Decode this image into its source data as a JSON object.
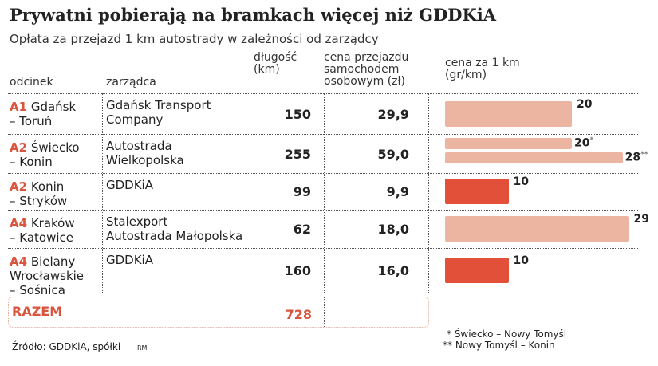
{
  "title": "Prywatni pobierają na bramkach więcej niż GDDKiA",
  "subtitle": "Opłata za przejazd 1 km autostrady w zależności od zarządcy",
  "headers": {
    "segment": "odcinek",
    "manager": "zarządca",
    "length": "długość (km)",
    "price": "cena przejazdu samochodem osobowym (zł)",
    "per_km": "cena za 1 km (gr/km)"
  },
  "colors": {
    "private": "#ebb5a2",
    "gddkia": "#e2503a",
    "accent": "#d9553e"
  },
  "chart_data": {
    "type": "table",
    "columns": [
      "odcinek",
      "zarządca",
      "długość (km)",
      "cena przejazdu samochodem osobowym (zł)",
      "cena za 1 km (gr/km)"
    ],
    "rows": [
      {
        "code": "A1",
        "segment": "Gdańsk – Toruń",
        "segment_l1": "Gdańsk",
        "segment_l2": "– Toruń",
        "manager_l1": "Gdańsk Transport",
        "manager_l2": "Company",
        "length": "150",
        "price": "29,9",
        "bars": [
          {
            "value": 20,
            "label": "20",
            "mark": ""
          }
        ],
        "type": "private"
      },
      {
        "code": "A2",
        "segment": "Świecko – Konin",
        "segment_l1": "Świecko",
        "segment_l2": "– Konin",
        "manager_l1": "Autostrada",
        "manager_l2": "Wielkopolska",
        "length": "255",
        "price": "59,0",
        "bars": [
          {
            "value": 20,
            "label": "20",
            "mark": "*"
          },
          {
            "value": 28,
            "label": "28",
            "mark": "**"
          }
        ],
        "type": "private"
      },
      {
        "code": "A2",
        "segment": "Konin – Stryków",
        "segment_l1": "Konin",
        "segment_l2": "– Stryków",
        "manager_l1": "GDDKiA",
        "manager_l2": "",
        "length": "99",
        "price": "9,9",
        "bars": [
          {
            "value": 10,
            "label": "10",
            "mark": ""
          }
        ],
        "type": "gddkia"
      },
      {
        "code": "A4",
        "segment": "Kraków – Katowice",
        "segment_l1": "Kraków",
        "segment_l2": "– Katowice",
        "manager_l1": "Stalexport",
        "manager_l2": "Autostrada Małopolska",
        "length": "62",
        "price": "18,0",
        "bars": [
          {
            "value": 29,
            "label": "29",
            "mark": ""
          }
        ],
        "type": "private"
      },
      {
        "code": "A4",
        "segment": "Bielany Wrocławskie – Sośnica",
        "segment_l1": "Bielany",
        "segment_l2": "Wrocławskie",
        "segment_l3": "– Sośnica",
        "manager_l1": "GDDKiA",
        "manager_l2": "",
        "length": "160",
        "price": "16,0",
        "bars": [
          {
            "value": 10,
            "label": "10",
            "mark": ""
          }
        ],
        "type": "gddkia"
      }
    ],
    "total": {
      "label": "RAZEM",
      "length": "728"
    },
    "xlim": [
      0,
      30
    ]
  },
  "footnotes": {
    "f1": "* Świecko – Nowy Tomyśl",
    "f2": "** Nowy Tomyśl – Konin"
  },
  "source": "Źródło: GDDKiA, spółki",
  "author": "RM"
}
